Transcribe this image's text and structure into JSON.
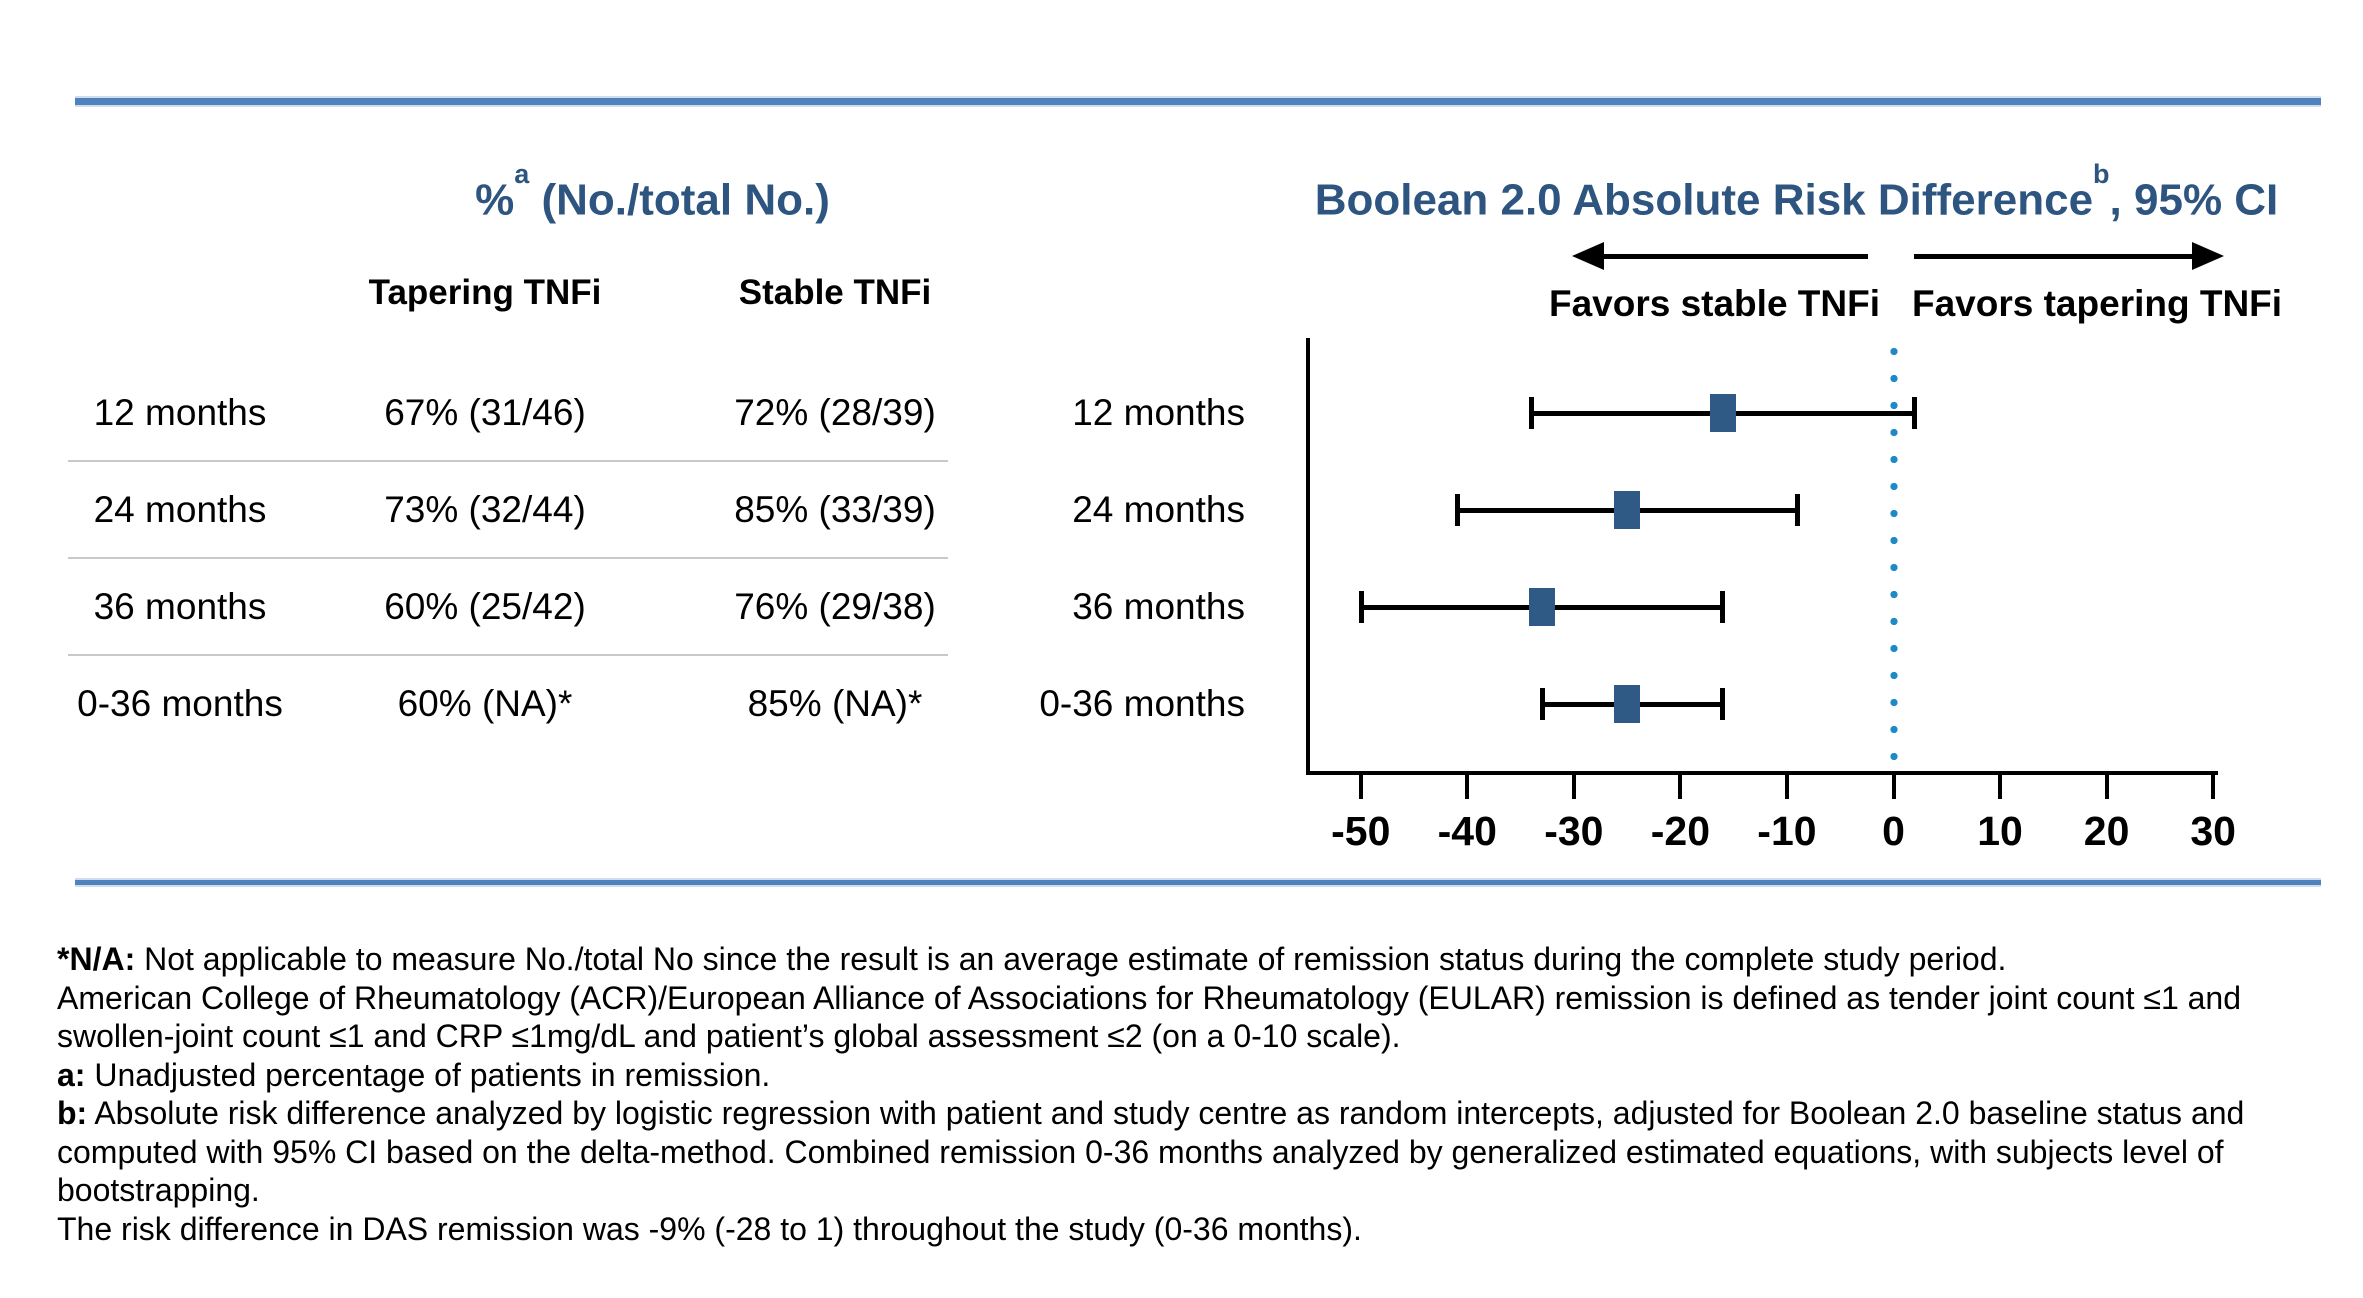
{
  "table": {
    "title": {
      "prefix": "%",
      "sup": "a",
      "suffix": " (No./total No.)"
    },
    "columns": [
      "Tapering TNFi",
      "Stable TNFi"
    ],
    "rows": [
      {
        "label": "12 months",
        "tapering": "67% (31/46)",
        "stable": "72% (28/39)"
      },
      {
        "label": "24 months",
        "tapering": "73% (32/44)",
        "stable": "85% (33/39)"
      },
      {
        "label": "36 months",
        "tapering": "60% (25/42)",
        "stable": "76% (29/38)"
      },
      {
        "label": "0-36 months",
        "tapering": "60% (NA)*",
        "stable": "85% (NA)*"
      }
    ]
  },
  "chart_data": {
    "type": "forest",
    "title": {
      "prefix": "Boolean 2.0 Absolute Risk Difference",
      "sup": "b",
      "suffix": ", 95% CI"
    },
    "direction_labels": {
      "left": "Favors stable TNFi",
      "right": "Favors tapering TNFi"
    },
    "categories": [
      "12 months",
      "24 months",
      "36 months",
      "0-36 months"
    ],
    "points": [
      {
        "label": "12 months",
        "estimate": -16,
        "ci_low": -34,
        "ci_high": 2
      },
      {
        "label": "24 months",
        "estimate": -25,
        "ci_low": -41,
        "ci_high": -9
      },
      {
        "label": "36 months",
        "estimate": -33,
        "ci_low": -50,
        "ci_high": -16
      },
      {
        "label": "0-36 months",
        "estimate": -25,
        "ci_low": -33,
        "ci_high": -16
      }
    ],
    "x_ticks": [
      -50,
      -40,
      -30,
      -20,
      -10,
      0,
      10,
      20,
      30
    ],
    "xlim": [
      -55,
      31
    ],
    "reference_line": 0,
    "grid": false,
    "legend": "none"
  },
  "footnotes": [
    {
      "bold": "*N/A:",
      "text": " Not applicable to measure No./total No since the result is an average estimate of remission status during the complete study period."
    },
    {
      "bold": "",
      "text": "American College of Rheumatology (ACR)/European Alliance of Associations for Rheumatology (EULAR) remission is defined as tender joint count ≤1 and"
    },
    {
      "bold": "",
      "text": "swollen-joint count ≤1 and CRP ≤1mg/dL and patient’s global assessment ≤2 (on a 0-10 scale)."
    },
    {
      "bold": "a:",
      "text": " Unadjusted percentage of patients in remission."
    },
    {
      "bold": "b:",
      "text": " Absolute risk difference analyzed by logistic regression with patient and study centre as random intercepts, adjusted for Boolean 2.0 baseline status and"
    },
    {
      "bold": "",
      "text": "computed with 95% CI based on the delta-method. Combined remission 0-36 months analyzed by generalized estimated equations, with subjects level of"
    },
    {
      "bold": "",
      "text": "bootstrapping."
    },
    {
      "bold": "",
      "text": "The risk difference in DAS remission was -9% (-28 to 1) throughout the study (0-36 months)."
    }
  ],
  "colors": {
    "title_blue": "#2d5580",
    "rule_blue": "#4f81bd",
    "marker_blue": "#2f5a85",
    "reference_dot_blue": "#1d8ac5"
  }
}
